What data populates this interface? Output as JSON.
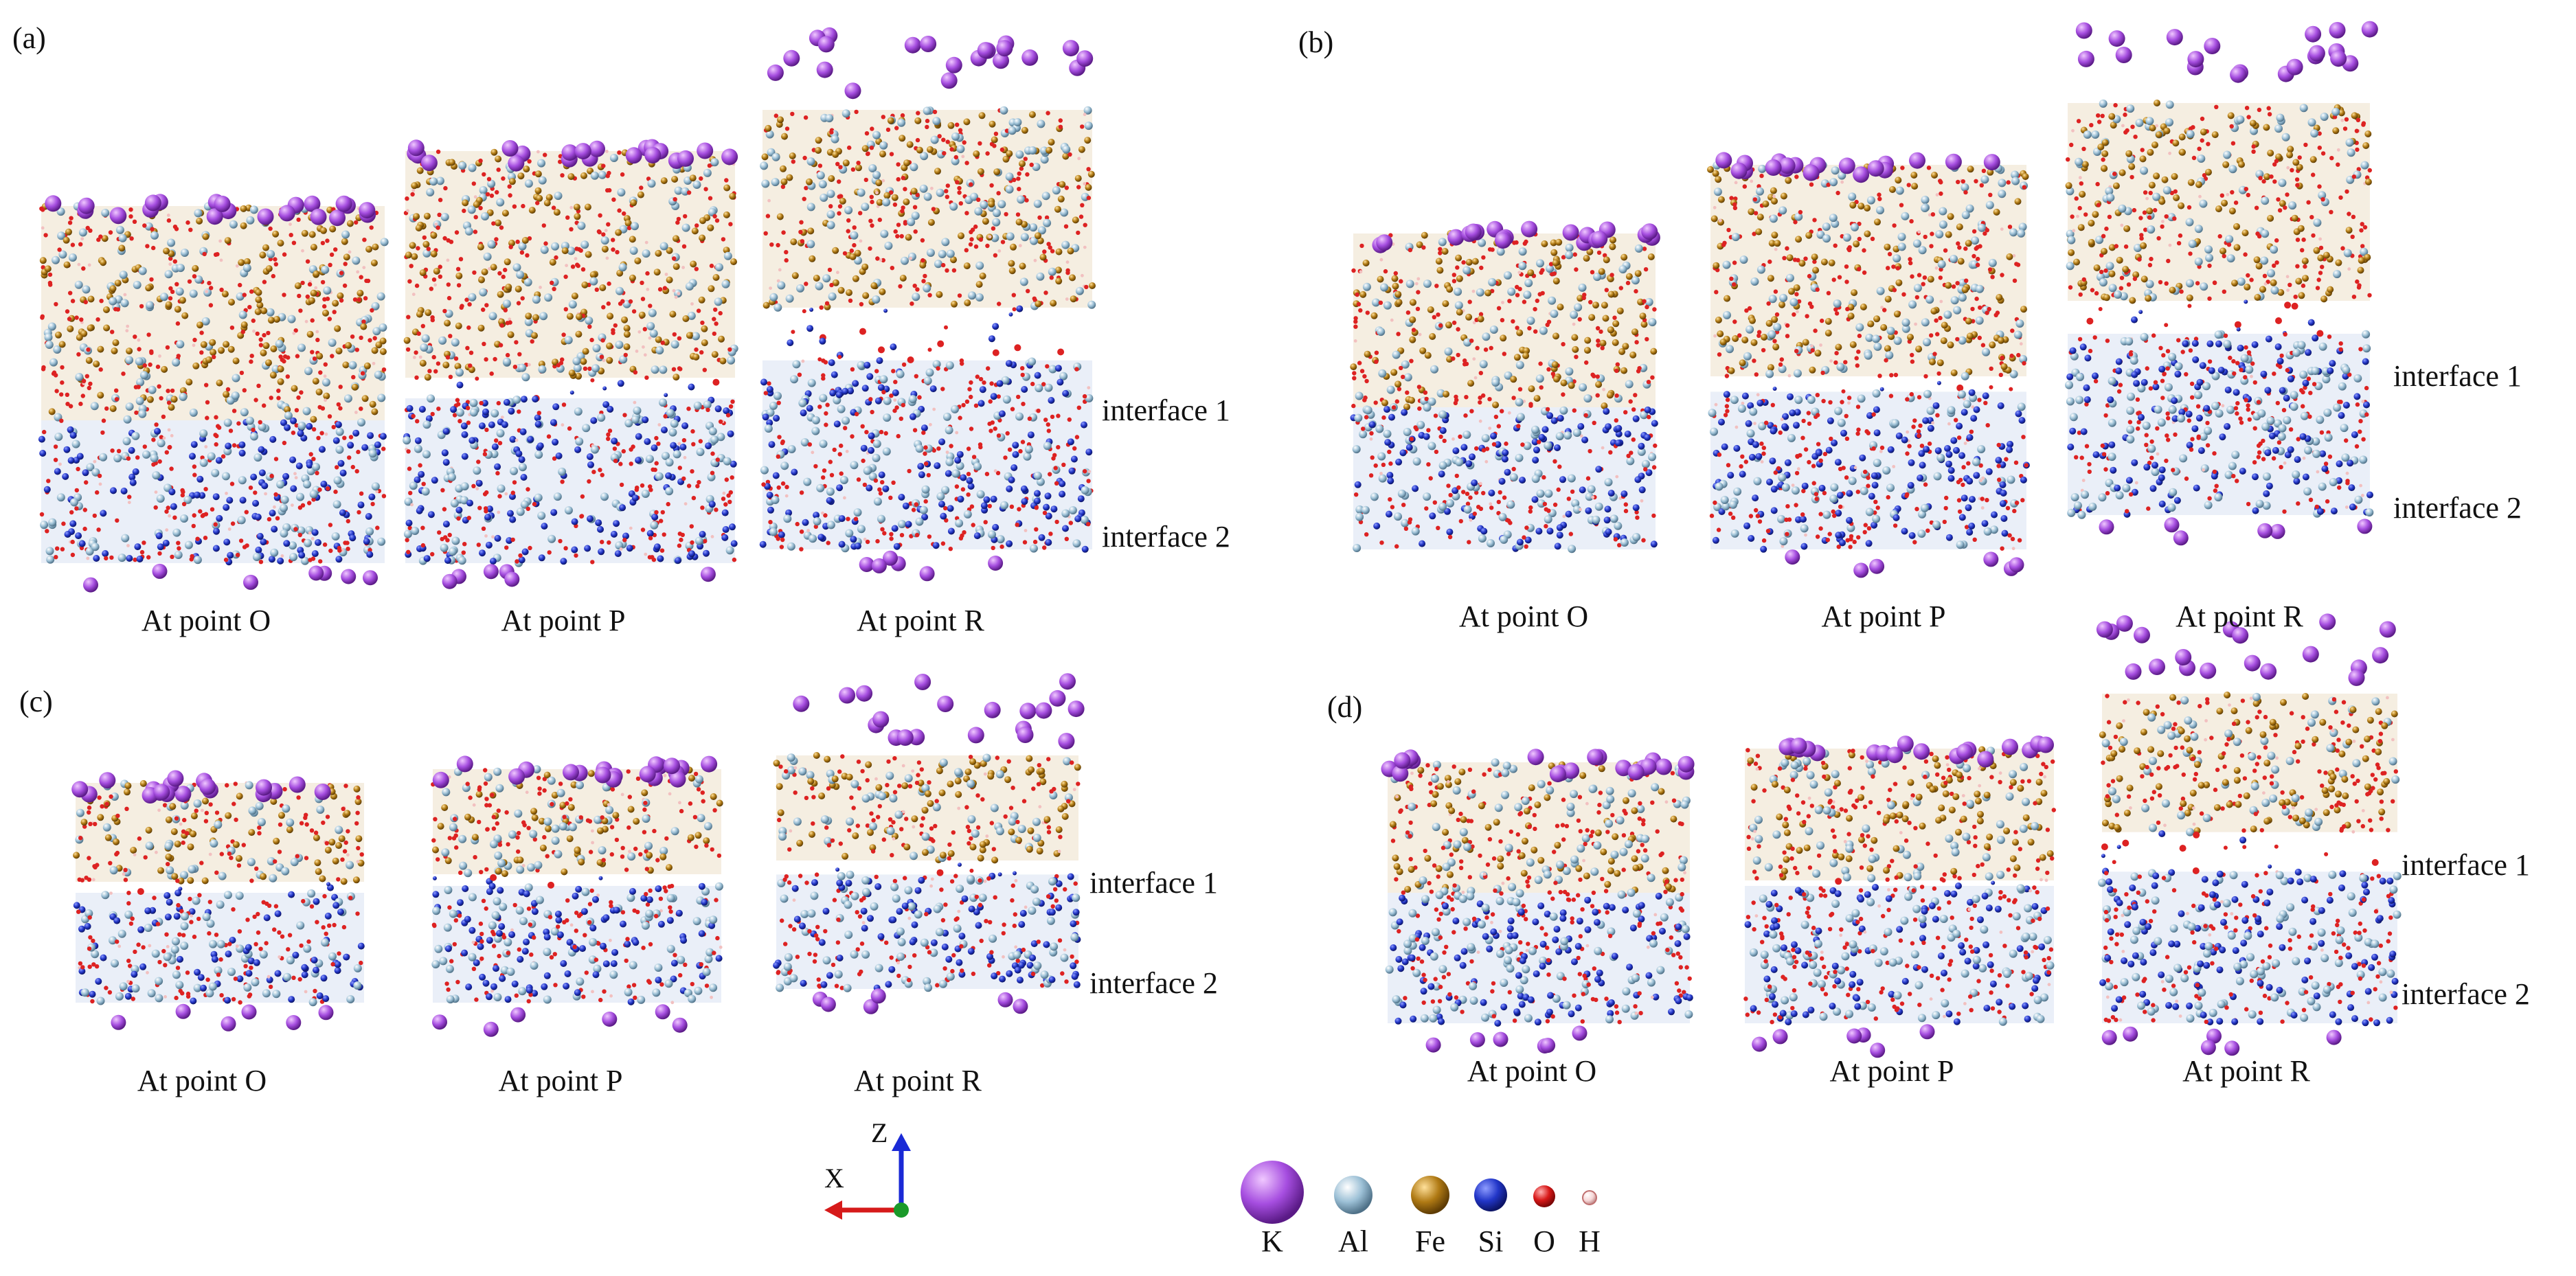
{
  "figure": {
    "panels": [
      {
        "tag": "(a)",
        "snapshots": [
          "At point O",
          "At point P",
          "At point R"
        ],
        "interface_labels": [
          "interface 1",
          "interface 2"
        ]
      },
      {
        "tag": "(b)",
        "snapshots": [
          "At point O",
          "At point P",
          "At point R"
        ],
        "interface_labels": [
          "interface 1",
          "interface 2"
        ]
      },
      {
        "tag": "(c)",
        "snapshots": [
          "At point O",
          "At point P",
          "At point R"
        ],
        "interface_labels": [
          "interface 1",
          "interface 2"
        ]
      },
      {
        "tag": "(d)",
        "snapshots": [
          "At point O",
          "At point P",
          "At point R"
        ],
        "interface_labels": [
          "interface 1",
          "interface 2"
        ]
      }
    ],
    "axes": {
      "vertical": "Z",
      "horizontal": "X"
    },
    "legend": [
      {
        "element": "K",
        "color": "#9b3fd6"
      },
      {
        "element": "Al",
        "color": "#9cc0d6"
      },
      {
        "element": "Fe",
        "color": "#b07a14"
      },
      {
        "element": "Si",
        "color": "#2236c8"
      },
      {
        "element": "O",
        "color": "#d81818"
      },
      {
        "element": "H",
        "color": "#f2c0c0"
      }
    ]
  }
}
